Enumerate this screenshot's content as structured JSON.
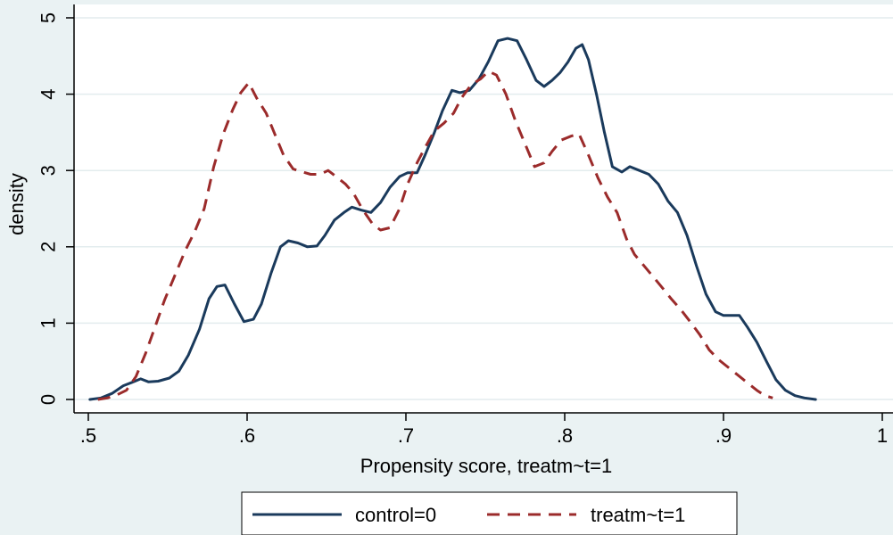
{
  "chart_data": {
    "type": "line",
    "title": "",
    "xlabel": "Propensity score, treatm~t=1",
    "ylabel": "density",
    "xlim": [
      0.5,
      1.0
    ],
    "ylim": [
      0,
      5
    ],
    "xticks": [
      {
        "value": 0.5,
        "label": ".5"
      },
      {
        "value": 0.6,
        "label": ".6"
      },
      {
        "value": 0.7,
        "label": ".7"
      },
      {
        "value": 0.8,
        "label": ".8"
      },
      {
        "value": 0.9,
        "label": ".9"
      },
      {
        "value": 1.0,
        "label": "1"
      }
    ],
    "yticks": [
      {
        "value": 0,
        "label": "0"
      },
      {
        "value": 1,
        "label": "1"
      },
      {
        "value": 2,
        "label": "2"
      },
      {
        "value": 3,
        "label": "3"
      },
      {
        "value": 4,
        "label": "4"
      },
      {
        "value": 5,
        "label": "5"
      }
    ],
    "grid": "horizontal",
    "legend_position": "bottom",
    "series": [
      {
        "name": "control=0",
        "color": "#1a3a5c",
        "style": "solid",
        "points": [
          [
            0.501,
            0.0
          ],
          [
            0.508,
            0.02
          ],
          [
            0.515,
            0.08
          ],
          [
            0.522,
            0.18
          ],
          [
            0.527,
            0.22
          ],
          [
            0.533,
            0.27
          ],
          [
            0.538,
            0.23
          ],
          [
            0.544,
            0.24
          ],
          [
            0.551,
            0.28
          ],
          [
            0.557,
            0.37
          ],
          [
            0.563,
            0.58
          ],
          [
            0.57,
            0.92
          ],
          [
            0.576,
            1.32
          ],
          [
            0.581,
            1.48
          ],
          [
            0.586,
            1.5
          ],
          [
            0.592,
            1.25
          ],
          [
            0.598,
            1.02
          ],
          [
            0.604,
            1.05
          ],
          [
            0.609,
            1.25
          ],
          [
            0.615,
            1.65
          ],
          [
            0.621,
            2.0
          ],
          [
            0.626,
            2.08
          ],
          [
            0.632,
            2.05
          ],
          [
            0.638,
            2.0
          ],
          [
            0.644,
            2.01
          ],
          [
            0.649,
            2.15
          ],
          [
            0.655,
            2.35
          ],
          [
            0.661,
            2.45
          ],
          [
            0.666,
            2.52
          ],
          [
            0.672,
            2.48
          ],
          [
            0.678,
            2.45
          ],
          [
            0.684,
            2.58
          ],
          [
            0.69,
            2.78
          ],
          [
            0.696,
            2.92
          ],
          [
            0.701,
            2.97
          ],
          [
            0.707,
            2.97
          ],
          [
            0.712,
            3.2
          ],
          [
            0.718,
            3.5
          ],
          [
            0.723,
            3.78
          ],
          [
            0.729,
            4.05
          ],
          [
            0.734,
            4.02
          ],
          [
            0.74,
            4.05
          ],
          [
            0.746,
            4.2
          ],
          [
            0.752,
            4.43
          ],
          [
            0.758,
            4.7
          ],
          [
            0.764,
            4.73
          ],
          [
            0.77,
            4.7
          ],
          [
            0.776,
            4.45
          ],
          [
            0.782,
            4.18
          ],
          [
            0.787,
            4.1
          ],
          [
            0.792,
            4.18
          ],
          [
            0.797,
            4.28
          ],
          [
            0.802,
            4.42
          ],
          [
            0.807,
            4.6
          ],
          [
            0.811,
            4.65
          ],
          [
            0.815,
            4.45
          ],
          [
            0.82,
            4.0
          ],
          [
            0.825,
            3.5
          ],
          [
            0.83,
            3.05
          ],
          [
            0.836,
            2.98
          ],
          [
            0.841,
            3.05
          ],
          [
            0.847,
            3.0
          ],
          [
            0.853,
            2.95
          ],
          [
            0.859,
            2.82
          ],
          [
            0.865,
            2.6
          ],
          [
            0.871,
            2.45
          ],
          [
            0.877,
            2.15
          ],
          [
            0.883,
            1.75
          ],
          [
            0.889,
            1.38
          ],
          [
            0.895,
            1.15
          ],
          [
            0.9,
            1.1
          ],
          [
            0.906,
            1.1
          ],
          [
            0.91,
            1.1
          ],
          [
            0.915,
            0.95
          ],
          [
            0.921,
            0.75
          ],
          [
            0.927,
            0.5
          ],
          [
            0.933,
            0.26
          ],
          [
            0.939,
            0.12
          ],
          [
            0.945,
            0.05
          ],
          [
            0.951,
            0.02
          ],
          [
            0.958,
            0.0
          ]
        ]
      },
      {
        "name": "treatm~t=1",
        "color": "#9b2b2b",
        "style": "dashed",
        "points": [
          [
            0.506,
            0.0
          ],
          [
            0.512,
            0.02
          ],
          [
            0.518,
            0.06
          ],
          [
            0.524,
            0.12
          ],
          [
            0.53,
            0.3
          ],
          [
            0.536,
            0.6
          ],
          [
            0.542,
            0.95
          ],
          [
            0.548,
            1.3
          ],
          [
            0.555,
            1.65
          ],
          [
            0.561,
            1.95
          ],
          [
            0.567,
            2.2
          ],
          [
            0.573,
            2.5
          ],
          [
            0.579,
            3.05
          ],
          [
            0.585,
            3.48
          ],
          [
            0.591,
            3.8
          ],
          [
            0.596,
            4.02
          ],
          [
            0.601,
            4.15
          ],
          [
            0.606,
            3.95
          ],
          [
            0.612,
            3.75
          ],
          [
            0.618,
            3.45
          ],
          [
            0.623,
            3.2
          ],
          [
            0.629,
            3.02
          ],
          [
            0.635,
            2.98
          ],
          [
            0.64,
            2.95
          ],
          [
            0.646,
            2.95
          ],
          [
            0.651,
            3.0
          ],
          [
            0.656,
            2.92
          ],
          [
            0.662,
            2.82
          ],
          [
            0.667,
            2.7
          ],
          [
            0.673,
            2.48
          ],
          [
            0.679,
            2.3
          ],
          [
            0.684,
            2.22
          ],
          [
            0.69,
            2.25
          ],
          [
            0.696,
            2.5
          ],
          [
            0.701,
            2.82
          ],
          [
            0.707,
            3.1
          ],
          [
            0.712,
            3.3
          ],
          [
            0.718,
            3.52
          ],
          [
            0.724,
            3.62
          ],
          [
            0.73,
            3.75
          ],
          [
            0.735,
            3.95
          ],
          [
            0.741,
            4.12
          ],
          [
            0.747,
            4.2
          ],
          [
            0.752,
            4.3
          ],
          [
            0.757,
            4.25
          ],
          [
            0.763,
            4.0
          ],
          [
            0.769,
            3.65
          ],
          [
            0.775,
            3.35
          ],
          [
            0.781,
            3.05
          ],
          [
            0.787,
            3.1
          ],
          [
            0.792,
            3.25
          ],
          [
            0.798,
            3.4
          ],
          [
            0.804,
            3.45
          ],
          [
            0.809,
            3.48
          ],
          [
            0.815,
            3.2
          ],
          [
            0.821,
            2.9
          ],
          [
            0.827,
            2.65
          ],
          [
            0.833,
            2.45
          ],
          [
            0.839,
            2.1
          ],
          [
            0.844,
            1.9
          ],
          [
            0.85,
            1.75
          ],
          [
            0.856,
            1.6
          ],
          [
            0.862,
            1.45
          ],
          [
            0.867,
            1.32
          ],
          [
            0.873,
            1.18
          ],
          [
            0.879,
            1.02
          ],
          [
            0.885,
            0.85
          ],
          [
            0.891,
            0.65
          ],
          [
            0.897,
            0.52
          ],
          [
            0.903,
            0.42
          ],
          [
            0.909,
            0.32
          ],
          [
            0.915,
            0.22
          ],
          [
            0.921,
            0.12
          ],
          [
            0.926,
            0.05
          ],
          [
            0.931,
            0.02
          ]
        ]
      }
    ]
  }
}
